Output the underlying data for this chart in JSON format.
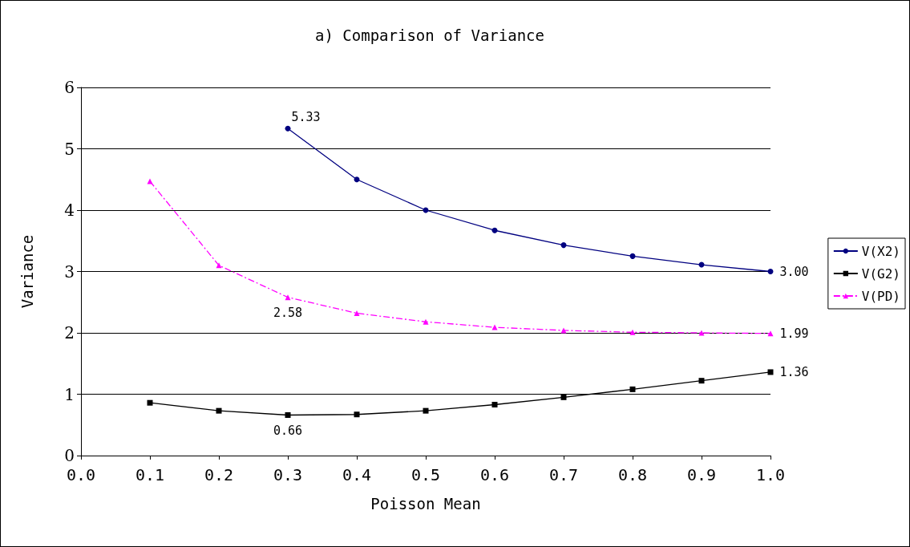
{
  "chart_data": {
    "type": "line",
    "title": "a) Comparison of Variance",
    "xlabel": "Poisson Mean",
    "ylabel": "Variance",
    "x": [
      0.1,
      0.2,
      0.3,
      0.4,
      0.5,
      0.6,
      0.7,
      0.8,
      0.9,
      1.0
    ],
    "series": [
      {
        "name": "V(X2)",
        "color": "#000080",
        "marker": "circle",
        "line_style": "solid",
        "values": [
          null,
          null,
          5.33,
          4.5,
          4.0,
          3.67,
          3.43,
          3.25,
          3.11,
          3.0
        ],
        "value_labels": [
          null,
          null,
          "5.33",
          null,
          null,
          null,
          null,
          null,
          null,
          "3.00"
        ]
      },
      {
        "name": "V(G2)",
        "color": "#000000",
        "marker": "square",
        "line_style": "solid",
        "values": [
          0.86,
          0.73,
          0.66,
          0.67,
          0.73,
          0.83,
          0.95,
          1.08,
          1.22,
          1.36
        ],
        "value_labels": [
          null,
          null,
          "0.66",
          null,
          null,
          null,
          null,
          null,
          null,
          "1.36"
        ]
      },
      {
        "name": "V(PD)",
        "color": "#ff00ff",
        "marker": "triangle",
        "line_style": "dashed",
        "values": [
          4.47,
          3.1,
          2.58,
          2.32,
          2.18,
          2.09,
          2.04,
          2.01,
          2.0,
          1.99
        ],
        "value_labels": [
          null,
          null,
          "2.58",
          null,
          null,
          null,
          null,
          null,
          null,
          "1.99"
        ]
      }
    ],
    "xlim": [
      0,
      1.0
    ],
    "xticks": [
      {
        "value": 0,
        "label": "0.0"
      },
      {
        "value": 0.1,
        "label": "0.1"
      },
      {
        "value": 0.2,
        "label": "0.2"
      },
      {
        "value": 0.3,
        "label": "0.3"
      },
      {
        "value": 0.4,
        "label": "0.4"
      },
      {
        "value": 0.5,
        "label": "0.5"
      },
      {
        "value": 0.6,
        "label": "0.6"
      },
      {
        "value": 0.7,
        "label": "0.7"
      },
      {
        "value": 0.8,
        "label": "0.8"
      },
      {
        "value": 0.9,
        "label": "0.9"
      },
      {
        "value": 1.0,
        "label": "1.0"
      }
    ],
    "ylim": [
      0,
      6
    ],
    "yticks": [
      0,
      1,
      2,
      3,
      4,
      5,
      6
    ],
    "grid": "y",
    "legend": "right"
  }
}
